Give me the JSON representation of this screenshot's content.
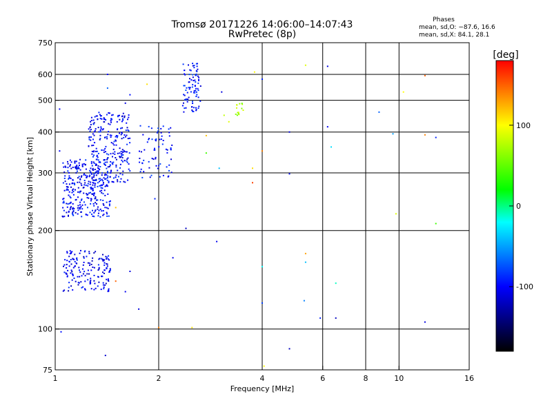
{
  "chart_data": {
    "type": "scatter",
    "title": "Tromsø 20171226 14:06:00–14:07:43",
    "subtitle": "RwPretec (8p)",
    "xlabel": "Frequency [MHz]",
    "ylabel": "Stationary phase Virtual Height [km]",
    "x_scale": "log",
    "y_scale": "log",
    "xlim": [
      1,
      16
    ],
    "ylim": [
      75,
      750
    ],
    "xticks": [
      1,
      2,
      4,
      6,
      8,
      10,
      16
    ],
    "yticks": [
      75,
      100,
      200,
      300,
      400,
      500,
      600,
      750
    ],
    "x_gridlines": [
      2,
      4,
      6,
      8,
      10
    ],
    "y_gridlines": [
      100,
      200,
      300,
      400,
      500,
      600
    ],
    "phase_stats": {
      "heading": "Phases",
      "line_o": "mean, sd,O: −87.6, 16.6",
      "line_x": "mean, sd,X: 84.1, 28.1"
    },
    "colorbar": {
      "label": "[deg]",
      "range": [
        -180,
        180
      ],
      "ticks": [
        100,
        0,
        -100
      ],
      "colors": [
        "#ff0000",
        "#ff8000",
        "#ffff00",
        "#80ff00",
        "#00ff00",
        "#00ffff",
        "#0080ff",
        "#0000ff",
        "#000080",
        "#000000"
      ]
    },
    "clusters": [
      {
        "name": "o-trace-low",
        "f": [
          1.05,
          1.45
        ],
        "h": [
          130,
          175
        ],
        "n": 170,
        "phase": [
          -125,
          -85
        ]
      },
      {
        "name": "o-trace-f1",
        "f": [
          1.05,
          1.45
        ],
        "h": [
          220,
          330
        ],
        "n": 320,
        "phase": [
          -120,
          -80
        ]
      },
      {
        "name": "o-trace-f1-upper",
        "f": [
          1.25,
          1.65
        ],
        "h": [
          280,
          460
        ],
        "n": 260,
        "phase": [
          -120,
          -80
        ]
      },
      {
        "name": "o-trace-f2",
        "f": [
          1.75,
          2.2
        ],
        "h": [
          290,
          420
        ],
        "n": 70,
        "phase": [
          -115,
          -75
        ]
      },
      {
        "name": "o-trace-top",
        "f": [
          2.35,
          2.65
        ],
        "h": [
          460,
          650
        ],
        "n": 90,
        "phase": [
          -115,
          -75
        ]
      },
      {
        "name": "x-trace",
        "f": [
          3.35,
          3.55
        ],
        "h": [
          450,
          490
        ],
        "n": 14,
        "phase": [
          50,
          95
        ]
      }
    ],
    "points": [
      {
        "f": 1.03,
        "h": 470,
        "phase": -100
      },
      {
        "f": 1.03,
        "h": 350,
        "phase": -105
      },
      {
        "f": 1.04,
        "h": 98,
        "phase": -95
      },
      {
        "f": 1.4,
        "h": 83,
        "phase": -115
      },
      {
        "f": 1.42,
        "h": 600,
        "phase": -100
      },
      {
        "f": 1.42,
        "h": 545,
        "phase": -70
      },
      {
        "f": 1.5,
        "h": 235,
        "phase": 120
      },
      {
        "f": 1.5,
        "h": 140,
        "phase": 150
      },
      {
        "f": 1.6,
        "h": 130,
        "phase": -105
      },
      {
        "f": 1.6,
        "h": 490,
        "phase": -110
      },
      {
        "f": 1.65,
        "h": 520,
        "phase": -95
      },
      {
        "f": 1.65,
        "h": 150,
        "phase": -110
      },
      {
        "f": 1.75,
        "h": 115,
        "phase": -110
      },
      {
        "f": 1.85,
        "h": 560,
        "phase": 110
      },
      {
        "f": 1.95,
        "h": 250,
        "phase": -90
      },
      {
        "f": 2.0,
        "h": 101,
        "phase": 140
      },
      {
        "f": 2.2,
        "h": 165,
        "phase": -105
      },
      {
        "f": 2.4,
        "h": 203,
        "phase": -120
      },
      {
        "f": 2.5,
        "h": 101,
        "phase": 110
      },
      {
        "f": 2.75,
        "h": 390,
        "phase": 120
      },
      {
        "f": 2.75,
        "h": 345,
        "phase": 40
      },
      {
        "f": 2.95,
        "h": 185,
        "phase": -105
      },
      {
        "f": 3.0,
        "h": 310,
        "phase": -40
      },
      {
        "f": 3.05,
        "h": 530,
        "phase": -110
      },
      {
        "f": 3.1,
        "h": 450,
        "phase": 80
      },
      {
        "f": 3.2,
        "h": 430,
        "phase": 90
      },
      {
        "f": 3.75,
        "h": 310,
        "phase": 110
      },
      {
        "f": 3.75,
        "h": 280,
        "phase": 160
      },
      {
        "f": 3.8,
        "h": 610,
        "phase": 100
      },
      {
        "f": 4.0,
        "h": 580,
        "phase": -90
      },
      {
        "f": 4.0,
        "h": 350,
        "phase": 140
      },
      {
        "f": 4.0,
        "h": 155,
        "phase": -20
      },
      {
        "f": 4.0,
        "h": 120,
        "phase": -80
      },
      {
        "f": 4.05,
        "h": 77,
        "phase": 100
      },
      {
        "f": 4.8,
        "h": 400,
        "phase": -110
      },
      {
        "f": 4.8,
        "h": 298,
        "phase": -95
      },
      {
        "f": 4.8,
        "h": 87,
        "phase": -120
      },
      {
        "f": 5.35,
        "h": 640,
        "phase": 90
      },
      {
        "f": 5.35,
        "h": 170,
        "phase": 130
      },
      {
        "f": 5.35,
        "h": 160,
        "phase": -40
      },
      {
        "f": 5.3,
        "h": 122,
        "phase": -60
      },
      {
        "f": 5.9,
        "h": 108,
        "phase": -90
      },
      {
        "f": 6.2,
        "h": 415,
        "phase": -105
      },
      {
        "f": 6.2,
        "h": 635,
        "phase": -110
      },
      {
        "f": 6.35,
        "h": 360,
        "phase": -30
      },
      {
        "f": 6.55,
        "h": 108,
        "phase": -120
      },
      {
        "f": 6.55,
        "h": 138,
        "phase": -10
      },
      {
        "f": 8.75,
        "h": 460,
        "phase": -70
      },
      {
        "f": 9.6,
        "h": 395,
        "phase": -50
      },
      {
        "f": 9.8,
        "h": 225,
        "phase": 90
      },
      {
        "f": 10.3,
        "h": 530,
        "phase": 100
      },
      {
        "f": 11.9,
        "h": 595,
        "phase": 150
      },
      {
        "f": 11.9,
        "h": 392,
        "phase": 140
      },
      {
        "f": 11.9,
        "h": 105,
        "phase": -110
      },
      {
        "f": 12.8,
        "h": 385,
        "phase": -90
      },
      {
        "f": 12.8,
        "h": 210,
        "phase": 40
      }
    ]
  }
}
